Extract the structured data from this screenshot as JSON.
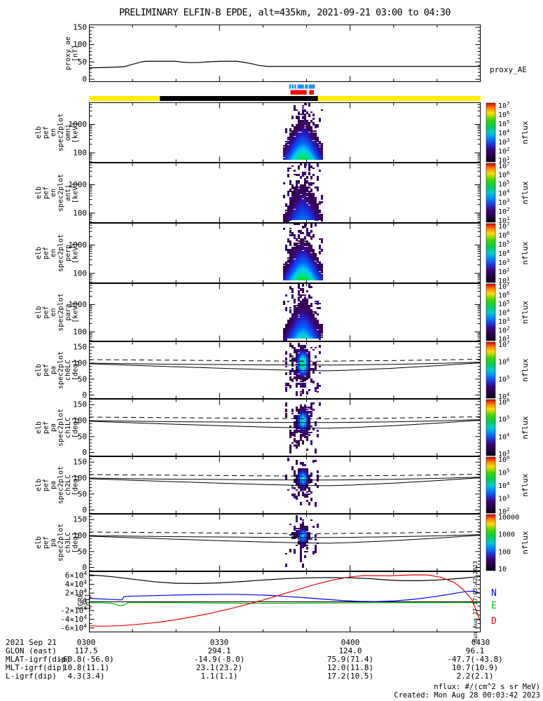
{
  "title": "PRELIMINARY ELFIN-B EPDE, alt=435km, 2021-09-21 03:00 to 04:30",
  "footer": {
    "line1": "nflux: #/(cm^2 s sr MeV)",
    "line2": "Created: Mon Aug 28 00:03:42 2023"
  },
  "side_note": "Sun Aug 27 17:03:42 2023",
  "colors": {
    "marker_blue": "#1e90ff",
    "marker_red": "#ff0000",
    "mode_yellow": "#ffee00",
    "mode_black": "#000000",
    "igrf_n": "#0000ff",
    "igrf_e": "#00bb00",
    "igrf_d": "#ee0000",
    "line_black": "#000000"
  },
  "chart_data": {
    "type": "multi-panel time-series and spectrogram stack",
    "x_axis": {
      "date": "2021 Sep 21",
      "start": "03:00",
      "end": "04:30",
      "duration_min": 90,
      "major_tick_min": 30,
      "minor_tick_min": 10,
      "tick_labels": [
        "0300",
        "0330",
        "0400",
        "0430"
      ]
    },
    "availability_bars": {
      "marker_blue": {
        "color": "#1e90ff",
        "y": 120.5,
        "h": 6,
        "segments_min": [
          [
            46.0,
            46.4
          ],
          [
            46.6,
            47.0
          ],
          [
            47.2,
            47.6
          ],
          [
            47.9,
            49.4
          ],
          [
            49.6,
            50.3
          ],
          [
            50.5,
            51.9
          ]
        ]
      },
      "marker_red": {
        "color": "#ff0000",
        "y": 128.5,
        "h": 6.5,
        "segments_min": [
          [
            46.3,
            50.0
          ],
          [
            50.6,
            51.7
          ]
        ]
      },
      "mode_bar": {
        "y": 137,
        "h": 7,
        "base_color": "#ffee00",
        "base_range_min": [
          0,
          90
        ],
        "overlay_color": "#000000",
        "overlay_range_min": [
          16.3,
          52.6
        ]
      }
    },
    "pa_lines": {
      "x": [
        0,
        10,
        20,
        30,
        40,
        49,
        55,
        60,
        70,
        80,
        90
      ],
      "dashed": [
        111,
        110,
        109,
        108,
        107,
        106,
        106,
        107,
        108,
        110,
        112
      ],
      "solid_flat": [
        100,
        98,
        96.5,
        95.5,
        94.5,
        94,
        94,
        94.5,
        96,
        99,
        103
      ],
      "solid_dip": [
        98,
        93,
        88.5,
        84,
        80,
        77,
        76,
        78,
        84,
        92,
        101
      ]
    },
    "panels": [
      {
        "id": "proxy_ae",
        "kind": "line",
        "ylabel_lines": [
          "proxy_ae",
          "[nT]"
        ],
        "right_label": "proxy_AE",
        "ylim": [
          -8,
          158
        ],
        "minor": 10,
        "major": 50,
        "yticks": [
          {
            "v": 0,
            "label": "0"
          },
          {
            "v": 50,
            "label": "50"
          },
          {
            "v": 100,
            "label": "100"
          },
          {
            "v": 150,
            "label": "150"
          }
        ],
        "series": [
          {
            "name": "proxy_AE",
            "color": "#000000",
            "x": [
              0,
              4,
              8,
              10,
              12,
              13,
              20,
              21,
              23,
              25,
              27,
              30,
              34,
              35,
              37,
              39,
              41,
              50,
              60,
              70,
              80,
              90
            ],
            "y": [
              33,
              34,
              36,
              43,
              50,
              52,
              52,
              50,
              48,
              48,
              50,
              52,
              52,
              50,
              46,
              40,
              37,
              37,
              37,
              37,
              37,
              37
            ]
          }
        ]
      },
      {
        "id": "spec_omni",
        "kind": "spec",
        "ylabel_lines": [
          "elb",
          "pef",
          "en",
          "spec2plot",
          "omni",
          "[keV]"
        ],
        "yscale": "log",
        "ylim": [
          45,
          6000
        ],
        "yticks": [
          {
            "v": 100,
            "label": "100"
          },
          {
            "v": 1000,
            "label": "1000"
          }
        ],
        "colorbar": {
          "labels": [
            "10^7",
            "10^6",
            "10^5",
            "10^4",
            "10^3",
            "10^2",
            "10^1"
          ],
          "title": "nflux"
        },
        "burst": {
          "center_min": 49.1,
          "half_width_min": 3.8,
          "amp": 0.78,
          "seed": 11
        }
      },
      {
        "id": "spec_anti",
        "kind": "spec",
        "ylabel_lines": [
          "elb",
          "pef",
          "en",
          "spec2plot",
          "anti",
          "[keV]"
        ],
        "yscale": "log",
        "ylim": [
          45,
          6000
        ],
        "yticks": [
          {
            "v": 100,
            "label": "100"
          },
          {
            "v": 1000,
            "label": "1000"
          }
        ],
        "colorbar": {
          "labels": [
            "10^7",
            "10^6",
            "10^5",
            "10^4",
            "10^3",
            "10^2",
            "10^1"
          ],
          "title": "nflux"
        },
        "burst": {
          "center_min": 49.1,
          "half_width_min": 3.4,
          "amp": 0.52,
          "seed": 23
        }
      },
      {
        "id": "spec_perp",
        "kind": "spec",
        "ylabel_lines": [
          "elb",
          "pef",
          "en",
          "spec2plot",
          "perp",
          "[keV]"
        ],
        "yscale": "log",
        "ylim": [
          45,
          6000
        ],
        "yticks": [
          {
            "v": 100,
            "label": "100"
          },
          {
            "v": 1000,
            "label": "1000"
          }
        ],
        "colorbar": {
          "labels": [
            "10^7",
            "10^6",
            "10^5",
            "10^4",
            "10^3",
            "10^2",
            "10^1"
          ],
          "title": "nflux"
        },
        "burst": {
          "center_min": 49.1,
          "half_width_min": 3.8,
          "amp": 0.8,
          "seed": 37
        }
      },
      {
        "id": "spec_para",
        "kind": "spec",
        "ylabel_lines": [
          "elb",
          "pef",
          "en",
          "spec2plot",
          "para",
          "[keV]"
        ],
        "yscale": "log",
        "ylim": [
          45,
          6000
        ],
        "yticks": [
          {
            "v": 100,
            "label": "100"
          },
          {
            "v": 1000,
            "label": "1000"
          }
        ],
        "colorbar": {
          "labels": [
            "10^7",
            "10^6",
            "10^5",
            "10^4",
            "10^3",
            "10^2",
            "10^1"
          ],
          "title": "nflux"
        },
        "burst": {
          "center_min": 49.1,
          "half_width_min": 3.5,
          "amp": 0.66,
          "seed": 49
        }
      },
      {
        "id": "pa_ch0",
        "kind": "pa",
        "ylabel_lines": [
          "elb",
          "pef",
          "pa",
          "spec2plot",
          "ch0LC",
          "[deg]"
        ],
        "ylim": [
          -12,
          168
        ],
        "minor": 10,
        "major": 50,
        "yticks": [
          {
            "v": 0,
            "label": "0"
          },
          {
            "v": 50,
            "label": "50"
          },
          {
            "v": 100,
            "label": "100"
          },
          {
            "v": 150,
            "label": "150"
          }
        ],
        "colorbar": {
          "labels": [
            "10^7",
            "10^6",
            "10^5",
            "10^4"
          ],
          "title": "nflux"
        },
        "burst": {
          "center_min": 49.1,
          "center_deg": 100,
          "amp": 0.68,
          "sx_min": 1.05,
          "sy_deg": 30,
          "halo": 2.6,
          "seed": 55
        }
      },
      {
        "id": "pa_ch1",
        "kind": "pa",
        "ylabel_lines": [
          "elb",
          "pef",
          "pa",
          "spec2plot",
          "ch1LC",
          "[deg]"
        ],
        "ylim": [
          -12,
          168
        ],
        "minor": 10,
        "major": 50,
        "yticks": [
          {
            "v": 0,
            "label": "0"
          },
          {
            "v": 50,
            "label": "50"
          },
          {
            "v": 100,
            "label": "100"
          },
          {
            "v": 150,
            "label": "150"
          }
        ],
        "colorbar": {
          "labels": [
            "10^6",
            "10^5",
            "10^4",
            "10^3"
          ],
          "title": "nflux"
        },
        "burst": {
          "center_min": 49.1,
          "center_deg": 100,
          "amp": 0.62,
          "sx_min": 0.95,
          "sy_deg": 24,
          "halo": 2.2,
          "seed": 66
        }
      },
      {
        "id": "pa_ch2",
        "kind": "pa",
        "ylabel_lines": [
          "elb",
          "pef",
          "pa",
          "spec2plot",
          "ch2LC",
          "[deg]"
        ],
        "ylim": [
          -12,
          168
        ],
        "minor": 10,
        "major": 50,
        "yticks": [
          {
            "v": 0,
            "label": "0"
          },
          {
            "v": 50,
            "label": "50"
          },
          {
            "v": 100,
            "label": "100"
          },
          {
            "v": 150,
            "label": "150"
          }
        ],
        "colorbar": {
          "labels": [
            "10^6",
            "10^5",
            "10^4",
            "10^3",
            "10^2"
          ],
          "title": "nflux"
        },
        "burst": {
          "center_min": 49.1,
          "center_deg": 100,
          "amp": 0.6,
          "sx_min": 0.9,
          "sy_deg": 20,
          "halo": 2.0,
          "seed": 77
        }
      },
      {
        "id": "pa_ch3",
        "kind": "pa",
        "ylabel_lines": [
          "elb",
          "pef",
          "pa",
          "spec2plot",
          "ch3LC",
          "[deg]"
        ],
        "ylim": [
          -12,
          168
        ],
        "minor": 10,
        "major": 50,
        "yticks": [
          {
            "v": 0,
            "label": "0"
          },
          {
            "v": 50,
            "label": "50"
          },
          {
            "v": 100,
            "label": "100"
          },
          {
            "v": 150,
            "label": "150"
          }
        ],
        "colorbar": {
          "labels": [
            "10000",
            "1000",
            "100",
            "10"
          ],
          "title": "nflux"
        },
        "burst": {
          "center_min": 49.1,
          "center_deg": 100,
          "amp": 0.55,
          "sx_min": 0.9,
          "sy_deg": 18,
          "halo": 2.3,
          "seed": 88
        }
      },
      {
        "id": "igrf",
        "kind": "line",
        "ylabel_lines": [
          "IGRF",
          "[nT]"
        ],
        "ylim": [
          -70,
          70
        ],
        "minor": 10,
        "major": 20,
        "unit_scale": 1000,
        "zero_line": true,
        "yticks": [
          {
            "v": 60,
            "label": "6×10^4"
          },
          {
            "v": 40,
            "label": "4×10^4"
          },
          {
            "v": 20,
            "label": "2×10^4"
          },
          {
            "v": 0,
            "label": "0"
          },
          {
            "v": -20,
            "label": "-2×10^4"
          },
          {
            "v": -40,
            "label": "-4×10^4"
          },
          {
            "v": -60,
            "label": "-6×10^4"
          }
        ],
        "right_labels": [
          {
            "text": "N",
            "color": "#0000ff",
            "v": 20
          },
          {
            "text": "E",
            "color": "#00bb00",
            "v": -9
          },
          {
            "text": "D",
            "color": "#ee0000",
            "v": -44
          }
        ],
        "series": [
          {
            "name": "Btotal",
            "color": "#000000",
            "x": [
              0,
              5,
              10,
              15,
              20,
              25,
              30,
              35,
              40,
              45,
              50,
              55,
              60,
              65,
              68,
              72,
              76,
              80,
              85,
              90
            ],
            "y": [
              62,
              58,
              52,
              46,
              42.5,
              42,
              43.5,
              46.5,
              50,
              53,
              55,
              55.5,
              55,
              53,
              50.5,
              48.5,
              48.5,
              50,
              53.5,
              58
            ]
          },
          {
            "name": "N",
            "color": "#0000ff",
            "x": [
              0,
              3,
              5,
              7,
              7.6,
              8,
              10,
              14,
              18,
              22,
              26,
              30,
              34,
              38,
              42,
              46,
              50,
              54,
              58,
              62,
              66,
              70,
              74,
              78,
              82,
              85,
              87,
              88.5,
              90
            ],
            "y": [
              8,
              6.5,
              5.5,
              4.5,
              4.5,
              12,
              13,
              14,
              15,
              16,
              16.5,
              17,
              17,
              16,
              14.5,
              12,
              9,
              6,
              3,
              1,
              0.5,
              2,
              5,
              10,
              16,
              21,
              24,
              24.5,
              20
            ]
          },
          {
            "name": "E",
            "color": "#00bb00",
            "x": [
              0,
              3,
              5,
              6,
              7,
              8,
              9,
              12,
              20,
              30,
              40,
              50,
              60,
              70,
              80,
              85,
              90
            ],
            "y": [
              -2,
              -2.5,
              -3,
              -5,
              -9,
              -8,
              -1.5,
              -1.5,
              -2,
              -3,
              -3.5,
              -3,
              -2.5,
              -2,
              -2,
              -1.5,
              -2
            ]
          },
          {
            "name": "D",
            "color": "#ee0000",
            "x": [
              0,
              3,
              7,
              12,
              16,
              20,
              24,
              28,
              32,
              36,
              40,
              44,
              48,
              52,
              56,
              60,
              63,
              66,
              69,
              72,
              75,
              78,
              81,
              84,
              86,
              88,
              89,
              90
            ],
            "y": [
              -55,
              -56,
              -55,
              -51,
              -47,
              -41,
              -34,
              -26,
              -17,
              -7,
              4,
              16,
              28,
              40,
              50,
              57,
              60,
              60,
              59.5,
              61,
              62,
              61.5,
              56,
              44,
              28,
              5,
              -20,
              -48
            ]
          }
        ]
      }
    ],
    "bottom_table": {
      "rows": [
        {
          "label": "2021 Sep 21",
          "values": [
            "0300",
            "0330",
            "0400",
            "0430"
          ]
        },
        {
          "label": "GLON (east)",
          "values": [
            "117.5",
            "294.1",
            "124.0",
            "96.1"
          ]
        },
        {
          "label": "MLAT-igrf(dip)",
          "values": [
            "-60.8(-56.0)",
            "-14.9(-8.0)",
            "75.9(71.4)",
            "-47.7(-43.8)"
          ]
        },
        {
          "label": "MLT-igrf(dip)",
          "values": [
            "10.8(11.1)",
            "23.1(23.2)",
            "12.0(11.8)",
            "10.7(10.9)"
          ]
        },
        {
          "label": "L-igrf(dip)",
          "values": [
            "4.3(3.4)",
            "1.1(1.1)",
            "17.2(10.5)",
            "2.2(2.1)"
          ]
        }
      ]
    }
  }
}
